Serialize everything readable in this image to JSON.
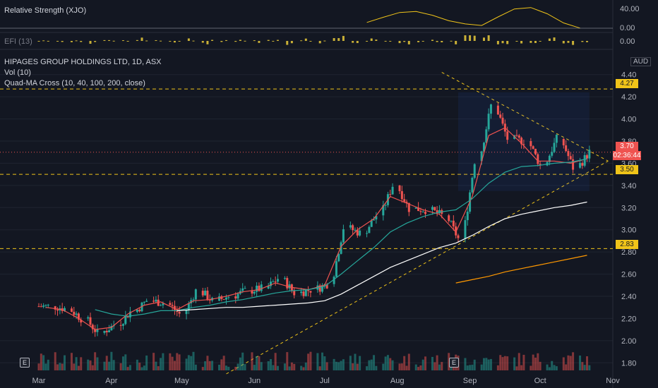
{
  "header": {
    "rsi_title": "Relative Strength (XJO)",
    "efi_title": "EFI (13)",
    "main_title": "HIPAGES GROUP HOLDINGS LTD, 1D, ASX",
    "vol_title": "Vol (10)",
    "ma_title": "Quad-MA Cross (10, 40, 100, 200, close)",
    "currency": "AUD"
  },
  "badges": {
    "price": "3.70",
    "countdown": "02:36:44",
    "upper_level": "4.27",
    "mid_level": "3.50",
    "lower_level": "2.83"
  },
  "events": [
    "E",
    "E"
  ],
  "colors": {
    "up": "#26a69a",
    "down": "#ef5350",
    "background": "#131722",
    "level_line": "#f0c419",
    "ma10": "#ef5350",
    "ma40": "#26a69a",
    "ma100": "#ffffff",
    "ma200": "#ff9800",
    "rsi": "#f0c419",
    "efi": "#c9b037"
  },
  "chart_data": {
    "type": "candlestick",
    "symbol": "HIPAGES GROUP HOLDINGS LTD",
    "interval": "1D",
    "exchange": "ASX",
    "last_price": 3.7,
    "ylim": [
      1.7,
      4.5
    ],
    "y_ticks": [
      1.8,
      2.0,
      2.2,
      2.4,
      2.6,
      2.8,
      3.0,
      3.2,
      3.4,
      3.6,
      3.8,
      4.0,
      4.2,
      4.4
    ],
    "x_ticks": [
      "Mar",
      "Apr",
      "May",
      "Jun",
      "Jul",
      "Aug",
      "Sep",
      "Oct",
      "Nov"
    ],
    "horizontal_levels": [
      4.27,
      3.5,
      2.83
    ],
    "close_series_weekly": [
      {
        "date": "2021-03-01",
        "close": 2.31
      },
      {
        "date": "2021-03-08",
        "close": 2.29
      },
      {
        "date": "2021-03-15",
        "close": 2.2
      },
      {
        "date": "2021-03-22",
        "close": 2.07
      },
      {
        "date": "2021-03-29",
        "close": 2.14
      },
      {
        "date": "2021-04-05",
        "close": 2.26
      },
      {
        "date": "2021-04-12",
        "close": 2.36
      },
      {
        "date": "2021-04-19",
        "close": 2.34
      },
      {
        "date": "2021-04-26",
        "close": 2.24
      },
      {
        "date": "2021-05-03",
        "close": 2.45
      },
      {
        "date": "2021-05-10",
        "close": 2.36
      },
      {
        "date": "2021-05-17",
        "close": 2.4
      },
      {
        "date": "2021-05-24",
        "close": 2.45
      },
      {
        "date": "2021-05-31",
        "close": 2.47
      },
      {
        "date": "2021-06-07",
        "close": 2.56
      },
      {
        "date": "2021-06-14",
        "close": 2.43
      },
      {
        "date": "2021-06-21",
        "close": 2.46
      },
      {
        "date": "2021-06-28",
        "close": 2.51
      },
      {
        "date": "2021-07-05",
        "close": 3.02
      },
      {
        "date": "2021-07-12",
        "close": 2.97
      },
      {
        "date": "2021-07-19",
        "close": 3.13
      },
      {
        "date": "2021-07-26",
        "close": 3.4
      },
      {
        "date": "2021-08-02",
        "close": 3.19
      },
      {
        "date": "2021-08-09",
        "close": 3.18
      },
      {
        "date": "2021-08-16",
        "close": 3.13
      },
      {
        "date": "2021-08-23",
        "close": 2.92
      },
      {
        "date": "2021-08-30",
        "close": 3.62
      },
      {
        "date": "2021-09-06",
        "close": 4.12
      },
      {
        "date": "2021-09-13",
        "close": 3.82
      },
      {
        "date": "2021-09-20",
        "close": 3.8
      },
      {
        "date": "2021-09-27",
        "close": 3.58
      },
      {
        "date": "2021-10-04",
        "close": 3.82
      },
      {
        "date": "2021-10-11",
        "close": 3.56
      },
      {
        "date": "2021-10-18",
        "close": 3.7
      }
    ],
    "ma_series": [
      {
        "name": "MA 10",
        "values": [
          2.3,
          2.28,
          2.2,
          2.1,
          2.12,
          2.24,
          2.32,
          2.35,
          2.28,
          2.36,
          2.37,
          2.4,
          2.44,
          2.46,
          2.52,
          2.48,
          2.46,
          2.5,
          2.85,
          3.0,
          3.1,
          3.3,
          3.24,
          3.18,
          3.14,
          2.98,
          3.3,
          3.85,
          3.92,
          3.78,
          3.62,
          3.62,
          3.6,
          3.64
        ]
      },
      {
        "name": "MA 40",
        "values": [
          null,
          null,
          null,
          2.28,
          2.24,
          2.22,
          2.24,
          2.27,
          2.27,
          2.3,
          2.32,
          2.35,
          2.37,
          2.4,
          2.43,
          2.45,
          2.46,
          2.49,
          2.6,
          2.72,
          2.84,
          2.98,
          3.06,
          3.12,
          3.16,
          3.18,
          3.28,
          3.42,
          3.52,
          3.57,
          3.58,
          3.6,
          3.61,
          3.64
        ]
      },
      {
        "name": "MA 100",
        "values": [
          null,
          null,
          null,
          null,
          null,
          null,
          null,
          null,
          2.27,
          2.28,
          2.29,
          2.3,
          2.3,
          2.31,
          2.32,
          2.33,
          2.34,
          2.36,
          2.42,
          2.5,
          2.58,
          2.66,
          2.72,
          2.78,
          2.84,
          2.88,
          2.95,
          3.03,
          3.1,
          3.14,
          3.17,
          3.2,
          3.22,
          3.25
        ]
      },
      {
        "name": "MA 200",
        "values": [
          null,
          null,
          null,
          null,
          null,
          null,
          null,
          null,
          null,
          null,
          null,
          null,
          null,
          null,
          null,
          null,
          null,
          null,
          null,
          null,
          null,
          null,
          null,
          null,
          null,
          2.52,
          2.55,
          2.58,
          2.62,
          2.65,
          2.68,
          2.71,
          2.74,
          2.77
        ]
      }
    ],
    "rsi_ticks": [
      40.0,
      0.0
    ],
    "efi_ticks": [
      0.0
    ]
  }
}
